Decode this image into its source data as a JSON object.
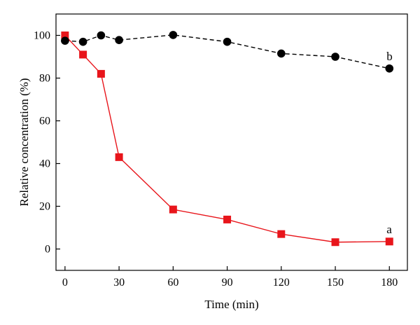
{
  "chart_data": {
    "type": "line",
    "xlabel": "Time (min)",
    "ylabel": "Relative concentration (%)",
    "xlim": [
      -5,
      190
    ],
    "ylim": [
      -10,
      110
    ],
    "xticks": [
      0,
      30,
      60,
      90,
      120,
      150,
      180
    ],
    "yticks": [
      0,
      20,
      40,
      60,
      80,
      100
    ],
    "grid": false,
    "series": [
      {
        "name": "a",
        "marker": "square",
        "line_style": "solid",
        "color": "#e8151b",
        "x": [
          0,
          10,
          20,
          30,
          60,
          90,
          120,
          150,
          180
        ],
        "y": [
          100,
          91,
          82,
          43,
          18.5,
          13.8,
          7,
          3.2,
          3.5
        ]
      },
      {
        "name": "b",
        "marker": "circle",
        "line_style": "dashed",
        "color": "#000000",
        "x": [
          0,
          10,
          20,
          30,
          60,
          90,
          120,
          150,
          180
        ],
        "y": [
          97.5,
          97,
          100,
          97.8,
          100.2,
          97,
          91.5,
          90,
          84.5
        ]
      }
    ]
  }
}
